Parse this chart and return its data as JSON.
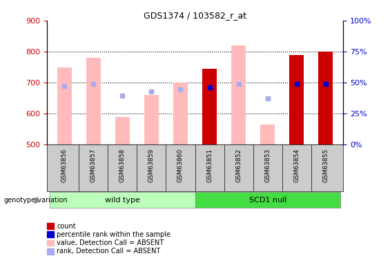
{
  "title": "GDS1374 / 103582_r_at",
  "samples": [
    "GSM63856",
    "GSM63857",
    "GSM63858",
    "GSM63859",
    "GSM63860",
    "GSM63851",
    "GSM63852",
    "GSM63853",
    "GSM63854",
    "GSM63855"
  ],
  "ylim_left": [
    500,
    900
  ],
  "ylim_right": [
    0,
    100
  ],
  "yticks_left": [
    500,
    600,
    700,
    800,
    900
  ],
  "yticks_right": [
    0,
    25,
    50,
    75,
    100
  ],
  "left_tick_color": "#cc0000",
  "right_tick_color": "#0000cc",
  "absent_bar_color": "#ffbbbb",
  "present_bar_color": "#cc0000",
  "absent_rank_color": "#aaaaee",
  "present_rank_color": "#0000cc",
  "absent_value": [
    750,
    780,
    590,
    660,
    700,
    500,
    820,
    565,
    500,
    500
  ],
  "absent_rank": [
    690,
    695,
    658,
    672,
    678,
    500,
    695,
    648,
    500,
    500
  ],
  "present_value": [
    500,
    500,
    500,
    500,
    500,
    745,
    500,
    500,
    790,
    800
  ],
  "present_rank_y": [
    500,
    500,
    500,
    500,
    500,
    685,
    500,
    500,
    695,
    695
  ],
  "is_present": [
    false,
    false,
    false,
    false,
    false,
    true,
    false,
    false,
    true,
    true
  ],
  "group_names": [
    "wild type",
    "SCD1 null"
  ],
  "group_color_light": "#bbffbb",
  "group_color_dark": "#44dd44",
  "group_divider": 4.5,
  "baseline": 500,
  "bar_width": 0.5,
  "legend_labels": [
    "count",
    "percentile rank within the sample",
    "value, Detection Call = ABSENT",
    "rank, Detection Call = ABSENT"
  ],
  "legend_colors": [
    "#cc0000",
    "#0000cc",
    "#ffbbbb",
    "#aaaaee"
  ],
  "xlabel_color": "#000000",
  "grid_color": "#000000",
  "title_fontsize": 9,
  "tick_fontsize": 8,
  "label_fontsize": 8,
  "legend_fontsize": 8
}
